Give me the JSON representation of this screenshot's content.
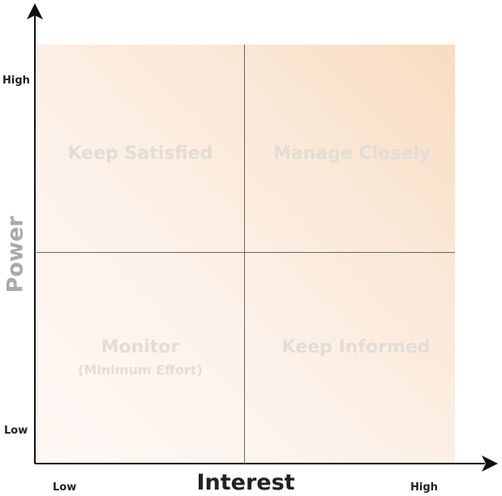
{
  "quadrants": {
    "top_left": {
      "label": "Keep Satisfied"
    },
    "top_right": {
      "label": "Manage Closely"
    },
    "bottom_left": {
      "label": "Monitor",
      "sublabel": "(Minimum Effort)"
    },
    "bottom_right": {
      "label": "Keep Informed"
    }
  },
  "y_axis": {
    "title": "Power",
    "high_label": "High",
    "low_label": "Low"
  },
  "x_axis": {
    "title": "Interest",
    "low_label": "Low",
    "high_label": "High"
  },
  "colors": {
    "gradient_warm": "#f9dcc0",
    "gradient_light": "#fef8f4",
    "quadrant_text": "#e3ddd7",
    "divider": "#666666",
    "axis": "#111111",
    "y_title": "#aaaaaa"
  }
}
